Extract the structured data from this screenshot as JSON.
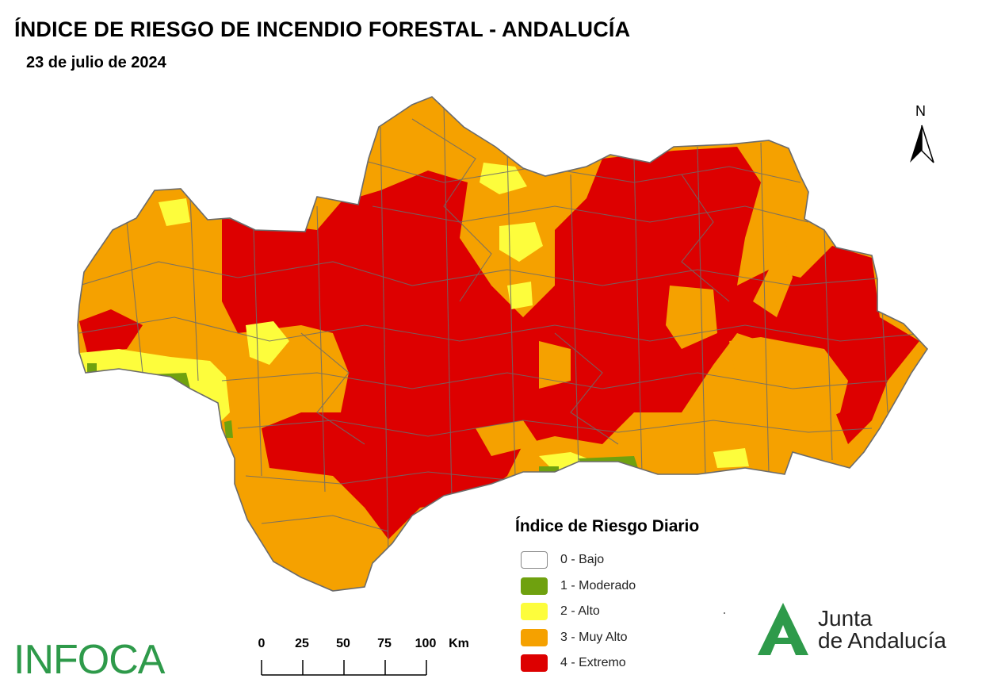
{
  "header": {
    "title": "ÍNDICE DE RIESGO DE INCENDIO FORESTAL - ANDALUCÍA",
    "date": "23 de julio de 2024"
  },
  "north_arrow": {
    "label": "N"
  },
  "legend": {
    "title": "Índice de Riesgo Diario",
    "items": [
      {
        "label": "0 - Bajo",
        "color": "#ffffff"
      },
      {
        "label": "1 - Moderado",
        "color": "#6fa10f"
      },
      {
        "label": "2 - Alto",
        "color": "#fdfd3c"
      },
      {
        "label": "3 - Muy Alto",
        "color": "#f5a100"
      },
      {
        "label": "4 - Extremo",
        "color": "#dd0000"
      }
    ]
  },
  "scale_bar": {
    "ticks": [
      "0",
      "25",
      "50",
      "75",
      "100"
    ],
    "unit": "Km"
  },
  "logos": {
    "infoca": "INFOCA",
    "junta_line1": "Junta",
    "junta_line2": "de Andalucía"
  },
  "map": {
    "border_color": "#6b6b6b",
    "risk_colors": {
      "moderado": "#6fa10f",
      "alto": "#fdfd3c",
      "muy_alto": "#f5a100",
      "extremo": "#dd0000"
    }
  }
}
